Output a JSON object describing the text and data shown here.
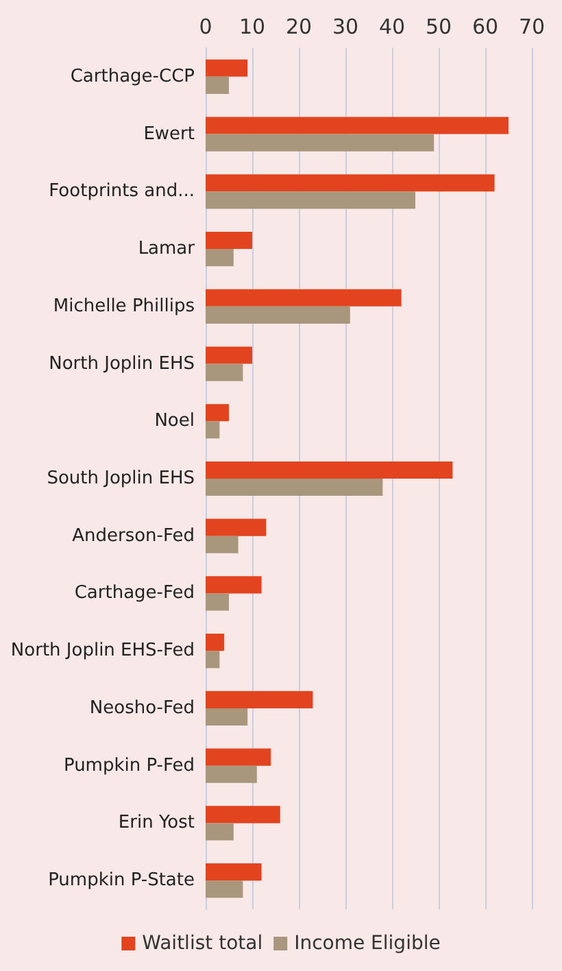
{
  "chart_data": {
    "type": "bar",
    "orientation": "horizontal",
    "categories": [
      "Carthage-CCP",
      "Ewert",
      "Footprints and...",
      "Lamar",
      "Michelle Phillips",
      "North Joplin EHS",
      "Noel",
      "South Joplin EHS",
      "Anderson-Fed",
      "Carthage-Fed",
      "North Joplin EHS-Fed",
      "Neosho-Fed",
      "Pumpkin P-Fed",
      "Erin Yost",
      "Pumpkin P-State"
    ],
    "series": [
      {
        "name": "Waitlist total",
        "color": "#e2441f",
        "values": [
          9,
          65,
          62,
          10,
          42,
          10,
          5,
          53,
          13,
          12,
          4,
          23,
          14,
          16,
          12
        ]
      },
      {
        "name": "Income Eligible",
        "color": "#a8977d",
        "values": [
          5,
          49,
          45,
          6,
          31,
          8,
          3,
          38,
          7,
          5,
          3,
          9,
          11,
          6,
          8
        ]
      }
    ],
    "xlim": [
      0,
      70
    ],
    "xticks": [
      0,
      10,
      20,
      30,
      40,
      50,
      60,
      70
    ],
    "grid": "x",
    "legend": "bottom"
  }
}
